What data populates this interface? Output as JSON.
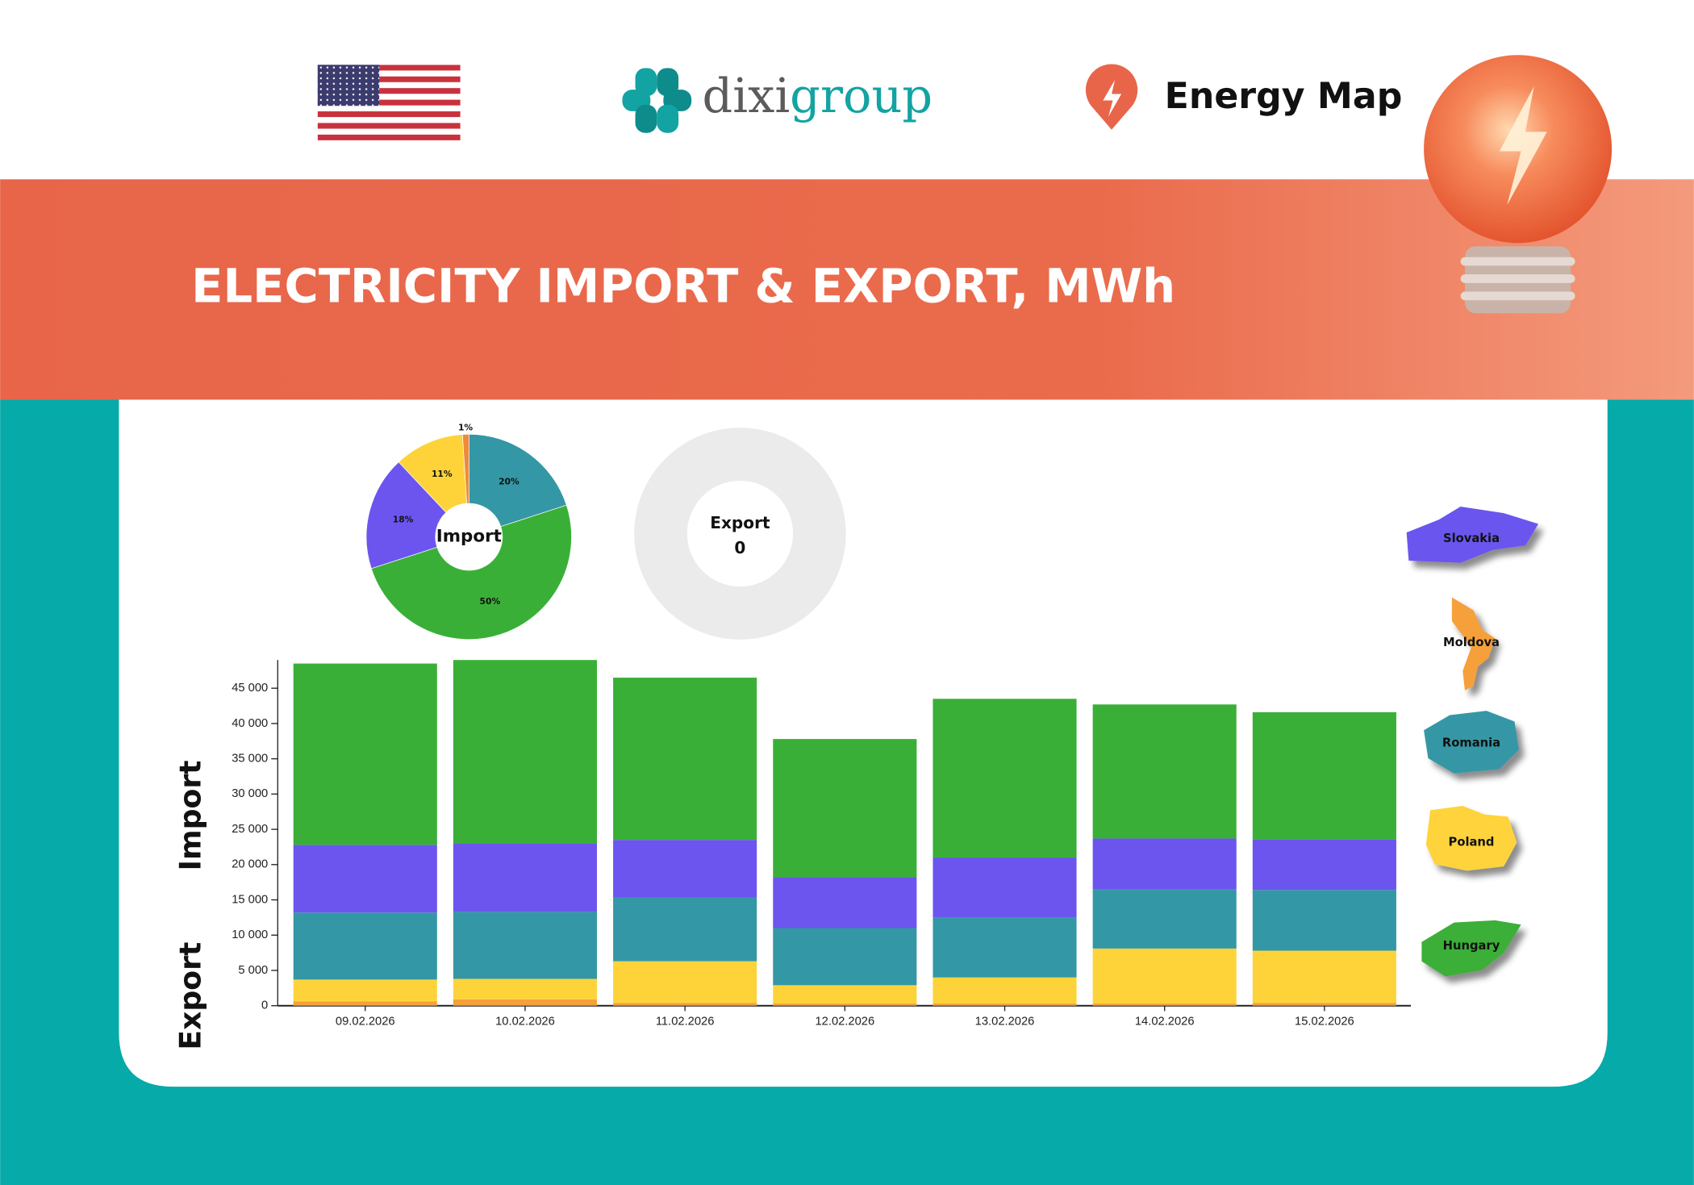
{
  "header": {
    "logo": [
      "dixi",
      "group"
    ],
    "app_name": "Energy Map"
  },
  "banner_title": "ELECTRICITY IMPORT & EXPORT, MWh",
  "chart_data": [
    {
      "type": "pie",
      "title": "Import",
      "values": [
        20,
        50,
        18,
        11,
        1
      ],
      "value_labels": [
        "20%",
        "50%",
        "18%",
        "11%",
        "1%"
      ],
      "colors": [
        "#3497a5",
        "#3aaf37",
        "#6b55ee",
        "#fed33a",
        "#f08a3a"
      ]
    },
    {
      "type": "pie",
      "title": "Export",
      "total": 0,
      "color": "#ebebeb"
    },
    {
      "type": "bar",
      "stacked": true,
      "y_axis_labels": [
        "Import",
        "Export"
      ],
      "categories": [
        "09.02.2026",
        "10.02.2026",
        "11.02.2026",
        "12.02.2026",
        "13.02.2026",
        "14.02.2026",
        "15.02.2026"
      ],
      "series": [
        {
          "name": "Moldova",
          "color": "#f5a03a",
          "values": [
            600,
            900,
            400,
            300,
            300,
            300,
            400
          ]
        },
        {
          "name": "Poland",
          "color": "#fed33a",
          "values": [
            3100,
            2900,
            5900,
            2600,
            3700,
            7800,
            7400
          ]
        },
        {
          "name": "Romania",
          "color": "#3497a5",
          "values": [
            9500,
            9500,
            9000,
            8100,
            8500,
            8400,
            8600
          ]
        },
        {
          "name": "Slovakia",
          "color": "#6b55ee",
          "values": [
            9600,
            9700,
            8200,
            7200,
            8500,
            7200,
            7200
          ]
        },
        {
          "name": "Hungary",
          "color": "#3aaf37",
          "values": [
            25700,
            26000,
            23000,
            19600,
            22500,
            19000,
            18000
          ]
        }
      ],
      "ylim": [
        0,
        49000
      ],
      "yticks": [
        0,
        {
          "value": 5000,
          "label": "5 000"
        },
        {
          "value": 10000,
          "label": "10 000"
        },
        {
          "value": 15000,
          "label": "15 000"
        },
        {
          "value": 20000,
          "label": "20 000"
        },
        {
          "value": 25000,
          "label": "25 000"
        },
        {
          "value": 30000,
          "label": "30 000"
        },
        {
          "value": 35000,
          "label": "35 000"
        },
        {
          "value": 40000,
          "label": "40 000"
        },
        {
          "value": 45000,
          "label": "45 000"
        }
      ]
    }
  ]
}
